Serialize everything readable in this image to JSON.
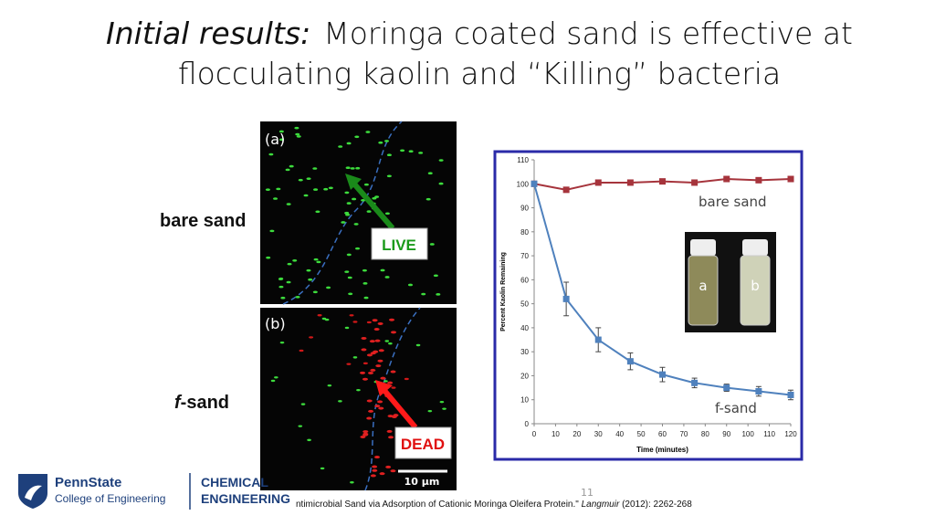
{
  "title": {
    "italic": "Initial results:",
    "line1": "Moringa coated sand is effective at",
    "line2": "flocculating kaolin and “Killing” bacteria"
  },
  "row_labels": {
    "bare_sand": "bare sand",
    "f_sand": [
      "f",
      "-sand"
    ]
  },
  "micrographs": {
    "panel_a": "(a)",
    "panel_b": "(b)",
    "live": "LIVE",
    "dead": "DEAD",
    "scale_bar": "10 µm"
  },
  "chart_data": {
    "type": "line",
    "x_label": "Time (minutes)",
    "y_label": "Percent Kaolin Remaining",
    "x": [
      0,
      15,
      30,
      45,
      60,
      75,
      90,
      105,
      120
    ],
    "series": [
      {
        "name": "bare sand",
        "color": "#a6343c",
        "values": [
          100,
          97.5,
          100.5,
          100.5,
          101,
          100.5,
          102,
          101.5,
          102
        ]
      },
      {
        "name": "f-sand",
        "color": "#4f81bd",
        "values": [
          100,
          52,
          35,
          26,
          20.5,
          17,
          15,
          13.5,
          12
        ],
        "errors": [
          0,
          7,
          5,
          3.5,
          3,
          2,
          1.5,
          2,
          2
        ]
      }
    ],
    "xlim": [
      0,
      120
    ],
    "xticks": [
      0,
      10,
      20,
      30,
      40,
      50,
      60,
      70,
      80,
      90,
      100,
      110,
      120
    ],
    "ylim": [
      0,
      110
    ],
    "yticks": [
      0,
      10,
      20,
      30,
      40,
      50,
      60,
      70,
      80,
      90,
      100,
      110
    ],
    "inset_labels": [
      "a",
      "b"
    ]
  },
  "page_number": "11",
  "citation": [
    "ntimicrobial Sand via Adsorption of Cationic Moringa Oleifera Protein.\" ",
    "Langmuir",
    " (2012): 2262-268"
  ],
  "logo": {
    "brand": "PennState",
    "college": "College of Engineering",
    "dept_1": "CHEMICAL",
    "dept_2": "ENGINEERING"
  }
}
